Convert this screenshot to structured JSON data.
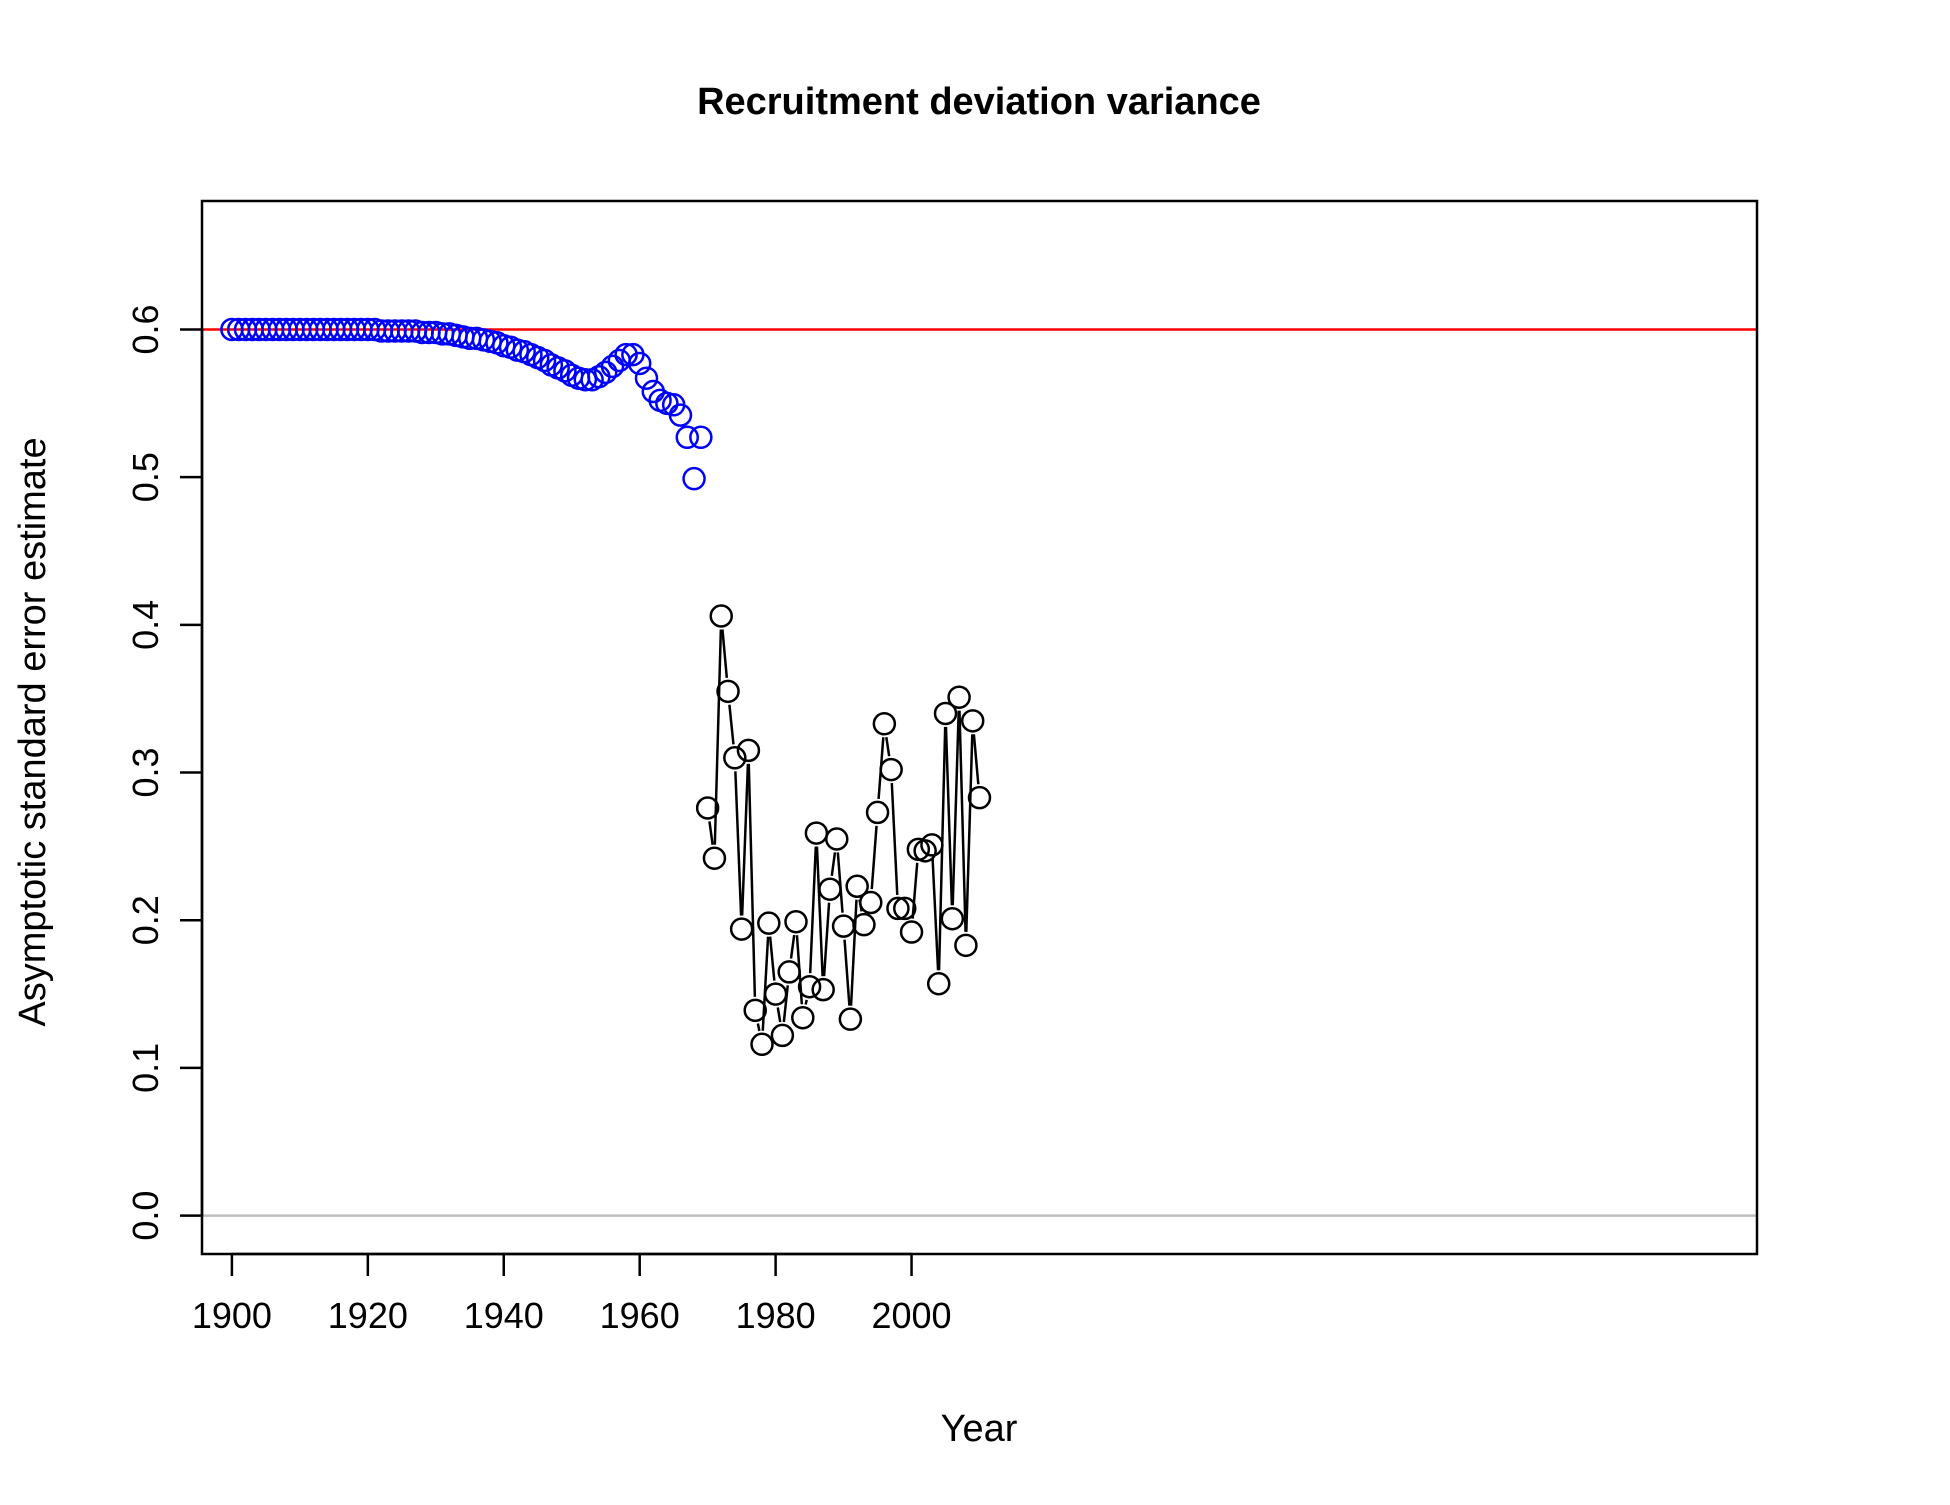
{
  "chart_data": {
    "type": "scatter",
    "title": "Recruitment deviation variance",
    "xlabel": "Year",
    "ylabel": "Asymptotic standard error estimate",
    "xlim": [
      1895.6,
      2124.4
    ],
    "ylim": [
      -0.026,
      0.687
    ],
    "x_ticks": [
      1900,
      1920,
      1940,
      1960,
      1980,
      2000
    ],
    "x_tick_labels": [
      "1900",
      "1920",
      "1940",
      "1960",
      "1980",
      "2000"
    ],
    "y_ticks": [
      0.0,
      0.1,
      0.2,
      0.3,
      0.4,
      0.5,
      0.6
    ],
    "y_tick_labels": [
      "0.0",
      "0.1",
      "0.2",
      "0.3",
      "0.4",
      "0.5",
      "0.6"
    ],
    "grid": false,
    "legend": "none",
    "reference_lines": [
      {
        "y": 0.6,
        "color": "#ff0000"
      },
      {
        "y": 0.0,
        "color": "#bebebe"
      }
    ],
    "series": [
      {
        "style": "points",
        "color": "#0000ff",
        "x": [
          1900,
          1901,
          1902,
          1903,
          1904,
          1905,
          1906,
          1907,
          1908,
          1909,
          1910,
          1911,
          1912,
          1913,
          1914,
          1915,
          1916,
          1917,
          1918,
          1919,
          1920,
          1921,
          1922,
          1923,
          1924,
          1925,
          1926,
          1927,
          1928,
          1929,
          1930,
          1931,
          1932,
          1933,
          1934,
          1935,
          1936,
          1937,
          1938,
          1939,
          1940,
          1941,
          1942,
          1943,
          1944,
          1945,
          1946,
          1947,
          1948,
          1949,
          1950,
          1951,
          1952,
          1953,
          1954,
          1955,
          1956,
          1957,
          1958,
          1959,
          1960,
          1961,
          1962,
          1963,
          1964,
          1965,
          1966,
          1967,
          1968,
          1969
        ],
        "y": [
          0.6,
          0.6,
          0.6,
          0.6,
          0.6,
          0.6,
          0.6,
          0.6,
          0.6,
          0.6,
          0.6,
          0.6,
          0.6,
          0.6,
          0.6,
          0.6,
          0.6,
          0.6,
          0.6,
          0.6,
          0.6,
          0.6,
          0.599,
          0.599,
          0.599,
          0.599,
          0.599,
          0.599,
          0.598,
          0.598,
          0.598,
          0.597,
          0.597,
          0.596,
          0.595,
          0.594,
          0.594,
          0.593,
          0.592,
          0.591,
          0.589,
          0.588,
          0.586,
          0.585,
          0.583,
          0.581,
          0.579,
          0.576,
          0.574,
          0.572,
          0.569,
          0.567,
          0.566,
          0.566,
          0.568,
          0.571,
          0.575,
          0.579,
          0.583,
          0.583,
          0.577,
          0.567,
          0.558,
          0.552,
          0.55,
          0.549,
          0.542,
          0.527,
          0.499,
          0.527
        ]
      },
      {
        "style": "both",
        "color": "#000000",
        "x": [
          1970,
          1971,
          1972,
          1973,
          1974,
          1975,
          1976,
          1977,
          1978,
          1979,
          1980,
          1981,
          1982,
          1983,
          1984,
          1985,
          1986,
          1987,
          1988,
          1989,
          1990,
          1991,
          1992,
          1993,
          1994,
          1995,
          1996,
          1997,
          1998,
          1999,
          2000,
          2001,
          2002,
          2003,
          2004,
          2005,
          2006,
          2007,
          2008,
          2009,
          2010
        ],
        "y": [
          0.276,
          0.242,
          0.406,
          0.355,
          0.31,
          0.194,
          0.315,
          0.139,
          0.116,
          0.198,
          0.15,
          0.122,
          0.165,
          0.199,
          0.134,
          0.155,
          0.259,
          0.153,
          0.221,
          0.255,
          0.196,
          0.133,
          0.223,
          0.197,
          0.212,
          0.273,
          0.333,
          0.302,
          0.208,
          0.208,
          0.192,
          0.248,
          0.247,
          0.251,
          0.157,
          0.34,
          0.201,
          0.351,
          0.183,
          0.335,
          0.283
        ]
      }
    ]
  }
}
